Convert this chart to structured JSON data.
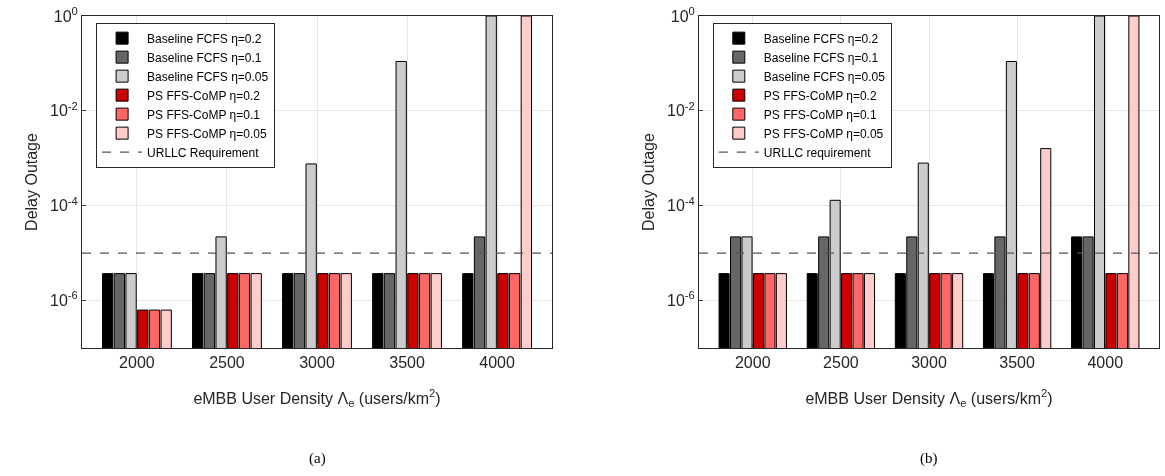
{
  "chart_data": [
    {
      "type": "bar",
      "categories": [
        "2000",
        "2500",
        "3000",
        "3500",
        "4000"
      ],
      "xlabel": "eMBB User Density Λ$_{e}$ (users/km$^{2}$)",
      "ylabel": "Delay Outage",
      "log": "y",
      "ylim": [
        1e-07,
        1
      ],
      "yticks": [
        {
          "value": 1e-06,
          "label": "10$^{-6}$"
        },
        {
          "value": 0.0001,
          "label": "10$^{-4}$"
        },
        {
          "value": 0.01,
          "label": "10$^{-2}$"
        },
        {
          "value": 1,
          "label": "10$^{0}$"
        }
      ],
      "grid": true,
      "legend": "top left",
      "annotations": [
        "(a)"
      ],
      "series": [
        {
          "name": "Baseline FCFS η=0.2",
          "color": "#000000",
          "values": [
            3.7e-06,
            3.7e-06,
            3.7e-06,
            3.7e-06,
            3.7e-06
          ]
        },
        {
          "name": "Baseline FCFS η=0.1",
          "color": "#666666",
          "values": [
            3.7e-06,
            3.7e-06,
            3.7e-06,
            3.7e-06,
            2.2e-05
          ]
        },
        {
          "name": "Baseline FCFS η=0.05",
          "color": "#cccccc",
          "values": [
            3.7e-06,
            2.2e-05,
            0.00076,
            0.11,
            1
          ]
        },
        {
          "name": "PS FFS-CoMP η=0.2",
          "color": "#cc0000",
          "values": [
            6.3e-07,
            3.7e-06,
            3.7e-06,
            3.7e-06,
            3.7e-06
          ]
        },
        {
          "name": "PS FFS-CoMP η=0.1",
          "color": "#ff6666",
          "values": [
            6.3e-07,
            3.7e-06,
            3.7e-06,
            3.7e-06,
            3.7e-06
          ]
        },
        {
          "name": "PS FFS-CoMP η=0.05",
          "color": "#ffcccc",
          "values": [
            6.3e-07,
            3.7e-06,
            3.7e-06,
            3.7e-06,
            1
          ]
        }
      ],
      "ref_lines": [
        {
          "axis": "y",
          "value": 1e-05,
          "label": "URLLC Requirement",
          "color": "#555555",
          "line_style": "dashed"
        }
      ]
    },
    {
      "type": "bar",
      "categories": [
        "2000",
        "2500",
        "3000",
        "3500",
        "4000"
      ],
      "xlabel": "eMBB User Density Λ$_{e}$ (users/km$^{2}$)",
      "ylabel": "Delay Outage",
      "log": "y",
      "ylim": [
        1e-07,
        1
      ],
      "yticks": [
        {
          "value": 1e-06,
          "label": "10$^{-6}$"
        },
        {
          "value": 0.0001,
          "label": "10$^{-4}$"
        },
        {
          "value": 0.01,
          "label": "10$^{-2}$"
        },
        {
          "value": 1,
          "label": "10$^{0}$"
        }
      ],
      "grid": true,
      "legend": "top left",
      "annotations": [
        "(b)"
      ],
      "series": [
        {
          "name": "Baseline FCFS η=0.2",
          "color": "#000000",
          "values": [
            3.7e-06,
            3.7e-06,
            3.7e-06,
            3.7e-06,
            2.2e-05
          ]
        },
        {
          "name": "Baseline FCFS η=0.1",
          "color": "#666666",
          "values": [
            2.2e-05,
            2.2e-05,
            2.2e-05,
            2.2e-05,
            2.2e-05
          ]
        },
        {
          "name": "Baseline FCFS η=0.05",
          "color": "#cccccc",
          "values": [
            2.2e-05,
            0.00013,
            0.00079,
            0.11,
            1
          ]
        },
        {
          "name": "PS FFS-CoMP η=0.2",
          "color": "#cc0000",
          "values": [
            3.7e-06,
            3.7e-06,
            3.7e-06,
            3.7e-06,
            3.7e-06
          ]
        },
        {
          "name": "PS FFS-CoMP η=0.1",
          "color": "#ff6666",
          "values": [
            3.7e-06,
            3.7e-06,
            3.7e-06,
            3.7e-06,
            3.7e-06
          ]
        },
        {
          "name": "PS FFS-CoMP η=0.05",
          "color": "#ffcccc",
          "values": [
            3.7e-06,
            3.7e-06,
            3.7e-06,
            0.0016,
            1
          ]
        }
      ],
      "ref_lines": [
        {
          "axis": "y",
          "value": 1e-05,
          "label": "URLLC requirement",
          "color": "#555555",
          "line_style": "dashed"
        }
      ]
    }
  ]
}
